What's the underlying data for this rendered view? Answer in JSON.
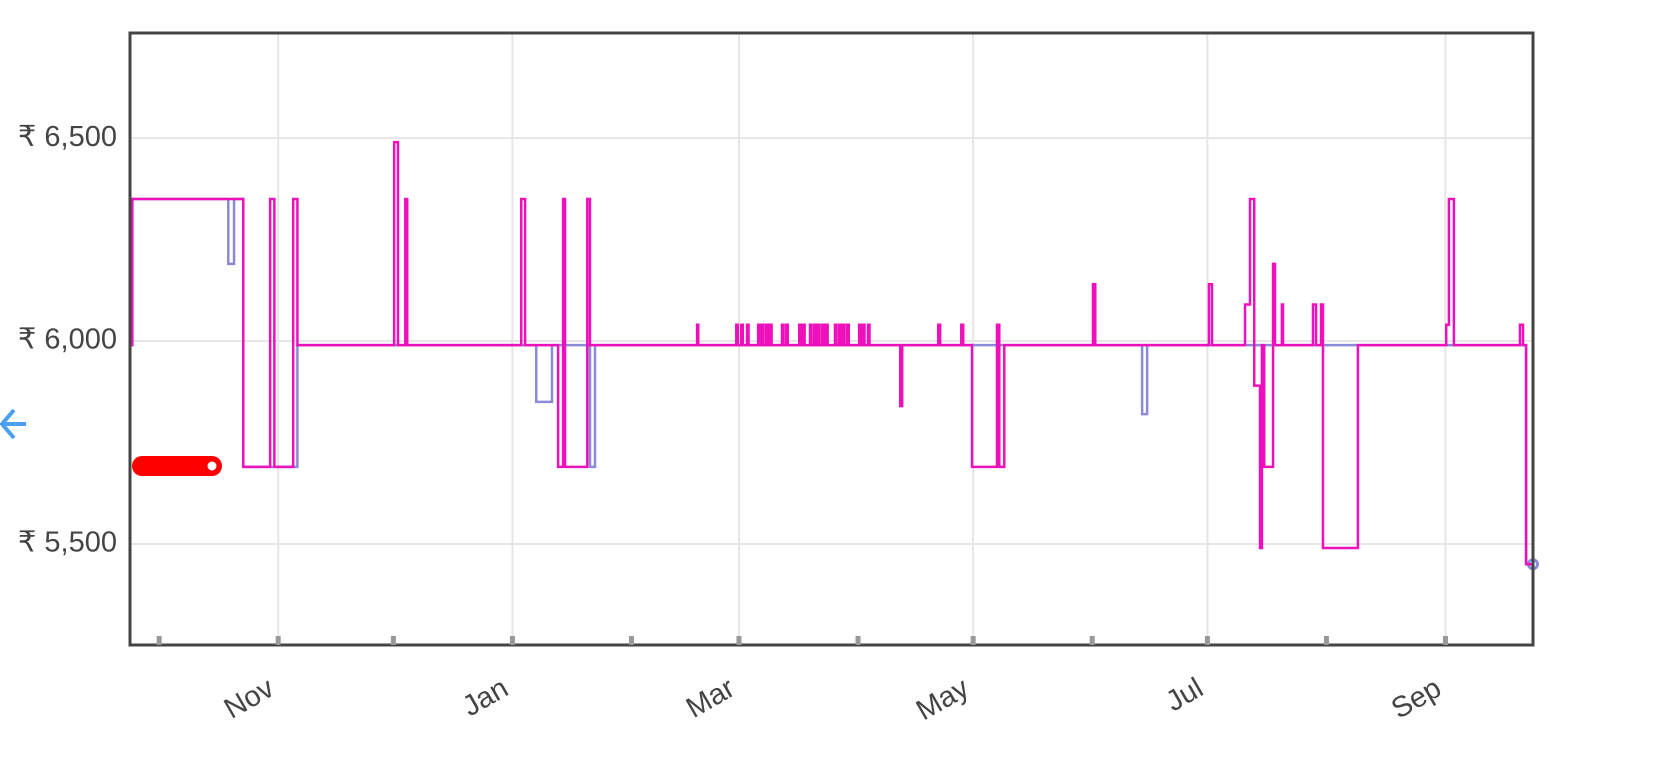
{
  "chart_data": {
    "type": "line",
    "step": true,
    "grid": true,
    "xlim": [
      -7.6,
      357.8
    ],
    "ylim": [
      5251,
      6759
    ],
    "xticks": [
      {
        "value": 31,
        "label": "Nov"
      },
      {
        "value": 92,
        "label": "Jan"
      },
      {
        "value": 151,
        "label": "Mar"
      },
      {
        "value": 212,
        "label": "May"
      },
      {
        "value": 273,
        "label": "Jul"
      },
      {
        "value": 335,
        "label": "Sep"
      }
    ],
    "xminorticks": [
      0,
      61,
      123,
      182,
      243,
      304
    ],
    "yticks": [
      {
        "value": 5500,
        "label": "₹ 5,500"
      },
      {
        "value": 6000,
        "label": "₹ 6,000"
      },
      {
        "value": 6500,
        "label": "₹ 6,500"
      }
    ],
    "series": [
      {
        "color": "#8a8ad6",
        "last_point_marker": true,
        "x": [
          -7.5,
          18.0,
          19.5,
          21.9,
          36.0,
          95.3,
          98.2,
          102.3,
          112.2,
          113.5,
          193.0,
          193.5,
          256.0,
          257.3,
          356.0,
          357.8
        ],
        "values": [
          6350,
          6190,
          6350,
          5690,
          5990,
          5990,
          5850,
          5990,
          5690,
          5990,
          5840,
          5990,
          5820,
          5990,
          5450,
          5450
        ]
      },
      {
        "color": "#ee11bb",
        "last_point_marker": false,
        "x": [
          -7.5,
          -7.0,
          21.9,
          28.9,
          30.0,
          34.9,
          36.0,
          61.2,
          62.2,
          64.1,
          64.6,
          94.3,
          95.3,
          103.9,
          105.2,
          105.7,
          111.5,
          112.2,
          140.1,
          140.4,
          150.3,
          150.7,
          151.6,
          152.0,
          153.1,
          153.5,
          156.0,
          156.4,
          157.0,
          157.4,
          158.1,
          158.5,
          159.1,
          159.5,
          162.2,
          162.6,
          163.3,
          163.7,
          166.7,
          167.1,
          167.7,
          168.1,
          169.5,
          169.9,
          170.6,
          171.0,
          171.6,
          172.0,
          172.7,
          173.1,
          173.7,
          174.1,
          176.0,
          176.4,
          177.1,
          177.5,
          178.1,
          178.5,
          179.2,
          179.6,
          182.3,
          182.7,
          183.3,
          183.7,
          184.6,
          185.0,
          193.0,
          193.5,
          202.9,
          203.4,
          208.9,
          209.4,
          211.7,
          218.2,
          218.8,
          220.1,
          243.2,
          243.8,
          273.4,
          274.2,
          282.8,
          284.1,
          285.2,
          286.7,
          287.2,
          287.8,
          290.1,
          290.6,
          292.4,
          292.7,
          300.5,
          301.3,
          302.6,
          303.1,
          312.2,
          335.2,
          335.9,
          337.2,
          354.4,
          355.2,
          356.0,
          357.8
        ],
        "values": [
          5990,
          6350,
          5690,
          6350,
          5690,
          6350,
          5990,
          6490,
          5990,
          6350,
          5990,
          6350,
          5990,
          5690,
          6350,
          5690,
          6350,
          5990,
          6040,
          5990,
          6040,
          5990,
          6040,
          5990,
          6040,
          5990,
          6040,
          5990,
          6040,
          5990,
          6040,
          5990,
          6040,
          5990,
          6040,
          5990,
          6040,
          5990,
          6040,
          5990,
          6040,
          5990,
          6040,
          5990,
          6040,
          5990,
          6040,
          5990,
          6040,
          5990,
          6040,
          5990,
          6040,
          5990,
          6040,
          5990,
          6040,
          5990,
          6040,
          5990,
          6040,
          5990,
          6040,
          5990,
          6040,
          5990,
          5840,
          5990,
          6040,
          5990,
          6040,
          5990,
          5690,
          6040,
          5690,
          5990,
          6140,
          5990,
          6140,
          5990,
          6090,
          6350,
          5890,
          5490,
          5990,
          5690,
          6190,
          5990,
          6090,
          5990,
          6090,
          5990,
          6090,
          5490,
          5990,
          6040,
          6350,
          5990,
          6040,
          5990,
          5450,
          5450
        ]
      }
    ]
  }
}
